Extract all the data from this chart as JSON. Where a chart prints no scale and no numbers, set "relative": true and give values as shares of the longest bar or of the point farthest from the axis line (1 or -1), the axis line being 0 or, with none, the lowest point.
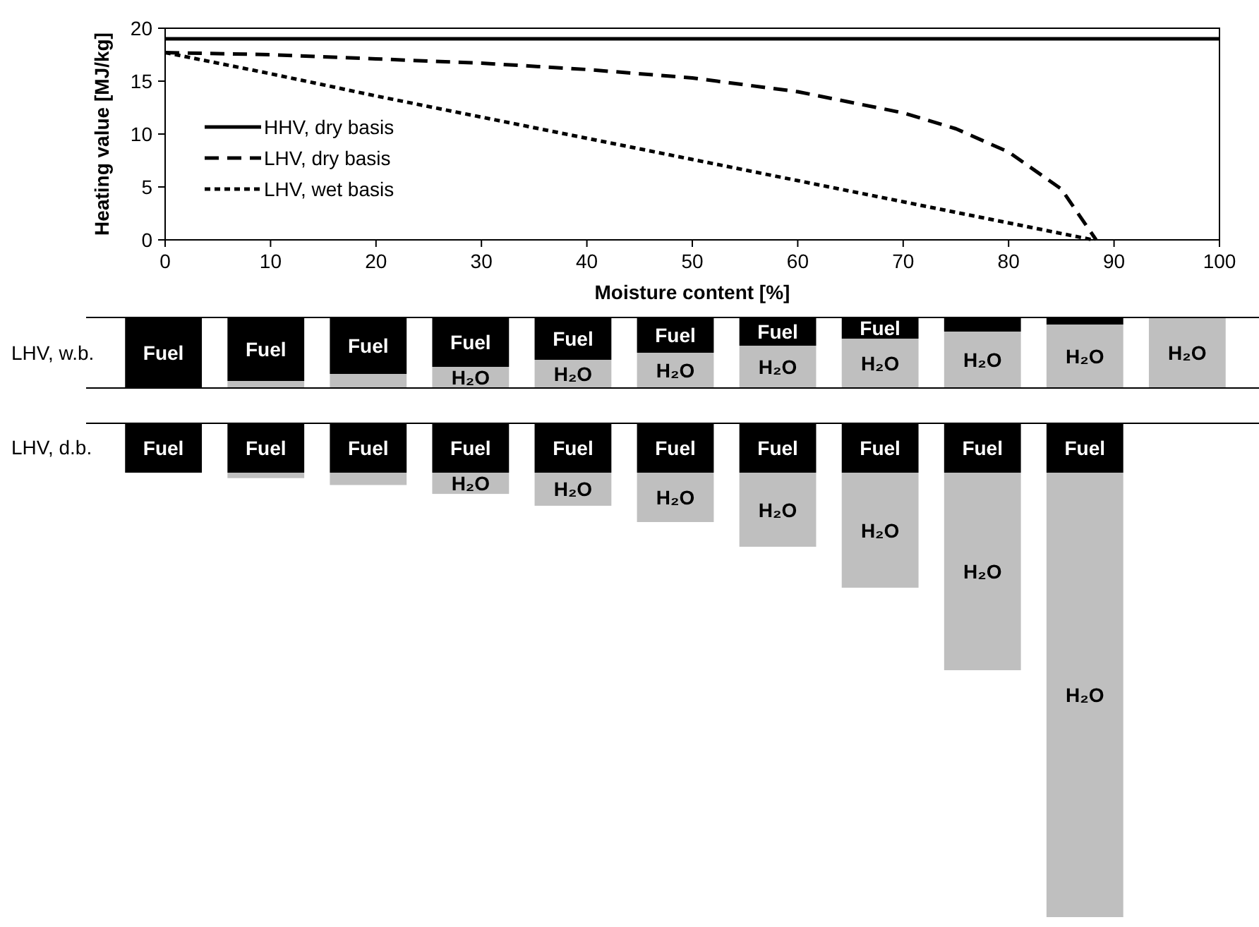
{
  "chart_data": [
    {
      "type": "line",
      "xlabel": "Moisture content [%]",
      "ylabel": "Heating value [MJ/kg]",
      "xlim": [
        0,
        100
      ],
      "ylim": [
        0,
        20
      ],
      "xticks": [
        0,
        10,
        20,
        30,
        40,
        50,
        60,
        70,
        80,
        90,
        100
      ],
      "yticks": [
        0,
        5,
        10,
        15,
        20
      ],
      "legend": "left",
      "marker": "none",
      "series": [
        {
          "name": "HHV, dry basis",
          "color": "#000000",
          "line_style": "solid",
          "x": [
            0,
            100
          ],
          "values": [
            19,
            19
          ]
        },
        {
          "name": "LHV, dry basis",
          "color": "#000000",
          "line_style": "dashed",
          "x": [
            0,
            10,
            20,
            30,
            40,
            50,
            60,
            70,
            75,
            80,
            85,
            88.3
          ],
          "values": [
            17.7,
            17.5,
            17.1,
            16.7,
            16.1,
            15.3,
            14.0,
            12.0,
            10.5,
            8.3,
            4.8,
            0
          ]
        },
        {
          "name": "LHV, wet basis",
          "color": "#000000",
          "line_style": "dotted",
          "x": [
            0,
            10,
            20,
            30,
            40,
            50,
            60,
            70,
            80,
            88
          ],
          "values": [
            17.7,
            15.7,
            13.6,
            11.6,
            9.6,
            7.6,
            5.6,
            3.6,
            1.6,
            0
          ]
        }
      ]
    },
    {
      "type": "bar",
      "ylabel": "LHV, w.b.",
      "relative": true,
      "stacked": true,
      "categories": [
        null,
        null,
        null,
        null,
        null,
        null,
        null,
        null,
        null,
        null,
        null
      ],
      "series": [
        {
          "name": "H₂O",
          "color": "#bfbfbf",
          "values": [
            0,
            0.1,
            0.2,
            0.3,
            0.4,
            0.5,
            0.6,
            0.7,
            0.8,
            0.9,
            1
          ]
        },
        {
          "name": "Fuel",
          "color": "#000000",
          "values": [
            1,
            0.9,
            0.8,
            0.7,
            0.6,
            0.5,
            0.4,
            0.3,
            0.2,
            0.1,
            0
          ]
        }
      ]
    },
    {
      "type": "bar",
      "ylabel": "LHV, d.b.",
      "relative": true,
      "stacked": true,
      "categories": [
        null,
        null,
        null,
        null,
        null,
        null,
        null,
        null,
        null,
        null,
        null
      ],
      "series": [
        {
          "name": "Fuel",
          "color": "#000000",
          "values": [
            -0.1,
            -0.1,
            -0.1,
            -0.1,
            -0.1,
            -0.1,
            -0.1,
            -0.1,
            -0.1,
            -0.1,
            null
          ]
        },
        {
          "name": "H₂O",
          "color": "#bfbfbf",
          "values": [
            0,
            -0.011,
            -0.025,
            -0.043,
            -0.067,
            -0.1,
            -0.15,
            -0.233,
            -0.4,
            -0.9,
            null
          ]
        }
      ]
    }
  ]
}
